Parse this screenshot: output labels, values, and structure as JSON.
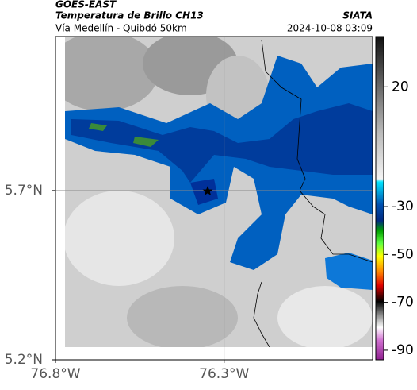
{
  "header": {
    "source": "GOES-EAST",
    "title": "Temperatura de Brillo CH13",
    "location": "Vía Medellín - Quibdó 50km",
    "agency": "SIATA",
    "datetime": "2024-10-08 03:09"
  },
  "map": {
    "xlim": [
      -76.8,
      -75.86
    ],
    "ylim": [
      5.2,
      6.155
    ],
    "xticks": [
      {
        "value": -76.8,
        "label": "76.8°W"
      },
      {
        "value": -76.3,
        "label": "76.3°W"
      }
    ],
    "yticks": [
      {
        "value": 5.2,
        "label": "5.2°N"
      },
      {
        "value": 5.7,
        "label": "5.7°N"
      }
    ],
    "colorbar": {
      "lim": [
        41,
        -94
      ],
      "ticks": [
        20,
        -30,
        -50,
        -70,
        -90
      ]
    }
  }
}
